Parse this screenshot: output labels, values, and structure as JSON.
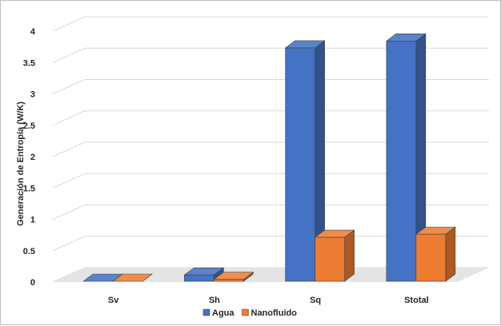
{
  "chart_data": {
    "type": "bar",
    "subtype": "3d-clustered-column",
    "title": "",
    "xlabel": "",
    "ylabel": "Generación de Entropía (W/K)",
    "categories": [
      "Sv",
      "Sh",
      "Sq",
      "Stotal"
    ],
    "series": [
      {
        "name": "Agua",
        "values": [
          0.0,
          0.1,
          3.72,
          3.83
        ],
        "color": "#4472C4"
      },
      {
        "name": "Nanofluido",
        "values": [
          0.0,
          0.03,
          0.7,
          0.75
        ],
        "color": "#ED7D31"
      }
    ],
    "ylim": [
      0,
      4
    ],
    "yticks": [
      "0",
      "0.5",
      "1",
      "1.5",
      "2",
      "2.5",
      "3",
      "3.5",
      "4"
    ],
    "grid": true,
    "legend": "bottom"
  }
}
